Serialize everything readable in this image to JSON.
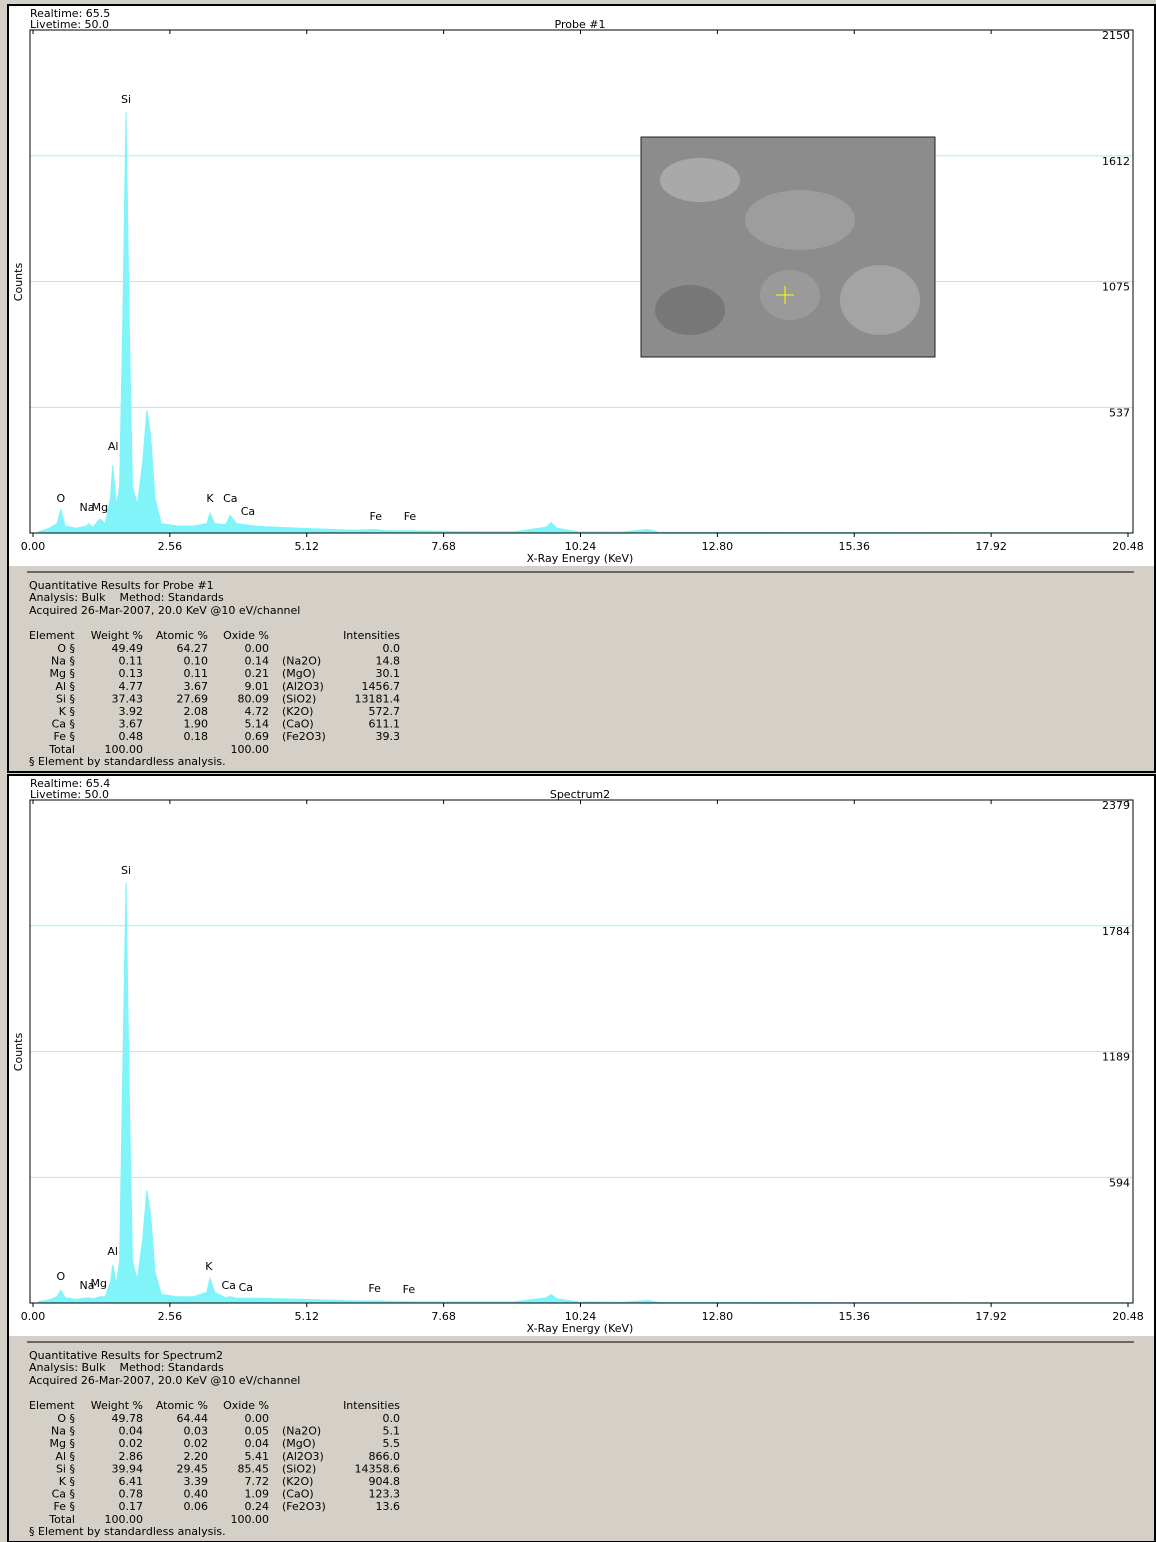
{
  "chart_data": [
    {
      "type": "area",
      "realtime": "Realtime: 65.5",
      "livetime": "Livetime: 50.0",
      "title": "Probe #1",
      "x_label": "X-Ray Energy (KeV)",
      "y_label": "Counts",
      "color": "#80f4f8",
      "grid": true,
      "xlim": [
        0,
        20.48
      ],
      "ylim": [
        0,
        2150
      ],
      "xticks": [
        {
          "value": 0,
          "label": "0.00"
        },
        2.56,
        5.12,
        7.68,
        10.24,
        {
          "value": 12.8,
          "label": "12.80"
        },
        15.36,
        17.92,
        20.48
      ],
      "yticks": [
        537,
        1075,
        1612,
        2150
      ],
      "x": [
        0.1,
        0.3,
        0.45,
        0.52,
        0.6,
        0.8,
        1.0,
        1.04,
        1.12,
        1.25,
        1.35,
        1.45,
        1.49,
        1.56,
        1.62,
        1.68,
        1.74,
        1.8,
        1.86,
        1.95,
        2.05,
        2.13,
        2.2,
        2.28,
        2.4,
        2.7,
        3.0,
        3.25,
        3.31,
        3.4,
        3.6,
        3.69,
        3.8,
        4.2,
        5.0,
        6.0,
        6.4,
        6.6,
        7.06,
        8.0,
        9.0,
        9.6,
        9.69,
        9.8,
        10.2,
        11.0,
        11.5,
        11.7,
        13,
        15,
        18,
        20.48
      ],
      "values": [
        5,
        20,
        40,
        100,
        30,
        20,
        30,
        40,
        25,
        60,
        40,
        150,
        290,
        120,
        200,
        900,
        1800,
        900,
        200,
        120,
        300,
        525,
        420,
        150,
        40,
        30,
        30,
        40,
        85,
        40,
        35,
        75,
        40,
        28,
        20,
        12,
        15,
        10,
        10,
        6,
        5,
        25,
        45,
        20,
        5,
        4,
        15,
        4,
        3,
        2,
        1,
        1
      ],
      "peak_labels": [
        {
          "label": "O",
          "x": 0.52,
          "y": 132
        },
        {
          "label": "Na",
          "x": 1.01,
          "y": 94
        },
        {
          "label": "Mg",
          "x": 1.25,
          "y": 94
        },
        {
          "label": "Al",
          "x": 1.5,
          "y": 355
        },
        {
          "label": "Si",
          "x": 1.74,
          "y": 1837
        },
        {
          "label": "K",
          "x": 3.31,
          "y": 132
        },
        {
          "label": "Ca",
          "x": 3.69,
          "y": 132
        },
        {
          "label": "Ca",
          "x": 4.02,
          "y": 77
        },
        {
          "label": "Fe",
          "x": 6.41,
          "y": 55
        },
        {
          "label": "Fe",
          "x": 7.05,
          "y": 55
        }
      ]
    },
    {
      "type": "area",
      "realtime": "Realtime: 65.4",
      "livetime": "Livetime: 50.0",
      "title": "Spectrum2",
      "x_label": "X-Ray Energy (KeV)",
      "y_label": "Counts",
      "color": "#80f4f8",
      "grid": true,
      "xlim": [
        0,
        20.48
      ],
      "ylim": [
        0,
        2379
      ],
      "xticks": [
        {
          "value": 0,
          "label": "0.00"
        },
        2.56,
        5.12,
        7.68,
        10.24,
        {
          "value": 12.8,
          "label": "12.80"
        },
        15.36,
        17.92,
        20.48
      ],
      "yticks": [
        594,
        1189,
        1784,
        2379
      ],
      "x": [
        0.1,
        0.3,
        0.45,
        0.52,
        0.6,
        0.8,
        1.04,
        1.12,
        1.25,
        1.35,
        1.45,
        1.49,
        1.56,
        1.62,
        1.68,
        1.74,
        1.8,
        1.86,
        1.95,
        2.05,
        2.13,
        2.2,
        2.28,
        2.4,
        2.7,
        3.0,
        3.25,
        3.31,
        3.4,
        3.6,
        3.69,
        3.8,
        4.2,
        5.0,
        6.0,
        6.4,
        6.6,
        7.06,
        8.0,
        9.0,
        9.6,
        9.69,
        9.8,
        10.2,
        11.0,
        11.5,
        11.7,
        13,
        15,
        18,
        20.48
      ],
      "values": [
        5,
        15,
        30,
        60,
        25,
        18,
        25,
        20,
        30,
        30,
        100,
        180,
        90,
        200,
        1100,
        1990,
        1000,
        200,
        110,
        300,
        533,
        420,
        150,
        40,
        30,
        30,
        50,
        118,
        50,
        25,
        30,
        22,
        22,
        18,
        10,
        10,
        8,
        6,
        5,
        5,
        25,
        40,
        20,
        5,
        4,
        12,
        4,
        3,
        2,
        1,
        1
      ],
      "peak_labels": [
        {
          "label": "O",
          "x": 0.52,
          "y": 108
        },
        {
          "label": "Na",
          "x": 1.01,
          "y": 66
        },
        {
          "label": "Mg",
          "x": 1.23,
          "y": 75
        },
        {
          "label": "Al",
          "x": 1.49,
          "y": 226
        },
        {
          "label": "Si",
          "x": 1.74,
          "y": 2030
        },
        {
          "label": "K",
          "x": 3.29,
          "y": 156
        },
        {
          "label": "Ca",
          "x": 3.66,
          "y": 66
        },
        {
          "label": "Ca",
          "x": 3.98,
          "y": 57
        },
        {
          "label": "Fe",
          "x": 6.39,
          "y": 52
        },
        {
          "label": "Fe",
          "x": 7.03,
          "y": 47
        }
      ]
    }
  ],
  "reports": [
    {
      "title": "Quantitative Results for Probe #1",
      "analysis": "Analysis: Bulk    Method: Standards",
      "acquired": "Acquired 26-Mar-2007, 20.0 KeV @10 eV/channel",
      "columns": [
        "Element",
        "Weight %",
        "Atomic %",
        "Oxide %",
        "Intensities"
      ],
      "rows": [
        [
          "O §",
          "49.49",
          "64.27",
          "0.00",
          null,
          "0.0"
        ],
        [
          "Na §",
          "0.11",
          "0.10",
          "0.14",
          "(Na2O)",
          "14.8"
        ],
        [
          "Mg §",
          "0.13",
          "0.11",
          "0.21",
          "(MgO)",
          "30.1"
        ],
        [
          "Al §",
          "4.77",
          "3.67",
          "9.01",
          "(Al2O3)",
          "1456.7"
        ],
        [
          "Si §",
          "37.43",
          "27.69",
          "80.09",
          "(SiO2)",
          "13181.4"
        ],
        [
          "K §",
          "3.92",
          "2.08",
          "4.72",
          "(K2O)",
          "572.7"
        ],
        [
          "Ca §",
          "3.67",
          "1.90",
          "5.14",
          "(CaO)",
          "611.1"
        ],
        [
          "Fe §",
          "0.48",
          "0.18",
          "0.69",
          "(Fe2O3)",
          "39.3"
        ],
        [
          "Total",
          "100.00",
          null,
          "100.00",
          null,
          null
        ]
      ],
      "footnote": "§ Element by standardless analysis."
    },
    {
      "title": "Quantitative Results for Spectrum2",
      "analysis": "Analysis: Bulk    Method: Standards",
      "acquired": "Acquired 26-Mar-2007, 20.0 KeV @10 eV/channel",
      "columns": [
        "Element",
        "Weight %",
        "Atomic %",
        "Oxide %",
        "Intensities"
      ],
      "rows": [
        [
          "O §",
          "49.78",
          "64.44",
          "0.00",
          null,
          "0.0"
        ],
        [
          "Na §",
          "0.04",
          "0.03",
          "0.05",
          "(Na2O)",
          "5.1"
        ],
        [
          "Mg §",
          "0.02",
          "0.02",
          "0.04",
          "(MgO)",
          "5.5"
        ],
        [
          "Al §",
          "2.86",
          "2.20",
          "5.41",
          "(Al2O3)",
          "866.0"
        ],
        [
          "Si §",
          "39.94",
          "29.45",
          "85.45",
          "(SiO2)",
          "14358.6"
        ],
        [
          "K §",
          "6.41",
          "3.39",
          "7.72",
          "(K2O)",
          "904.8"
        ],
        [
          "Ca §",
          "0.78",
          "0.40",
          "1.09",
          "(CaO)",
          "123.3"
        ],
        [
          "Fe §",
          "0.17",
          "0.06",
          "0.24",
          "(Fe2O3)",
          "13.6"
        ],
        [
          "Total",
          "100.00",
          null,
          "100.00",
          null,
          null
        ]
      ],
      "footnote": "§ Element by standardless analysis."
    }
  ]
}
